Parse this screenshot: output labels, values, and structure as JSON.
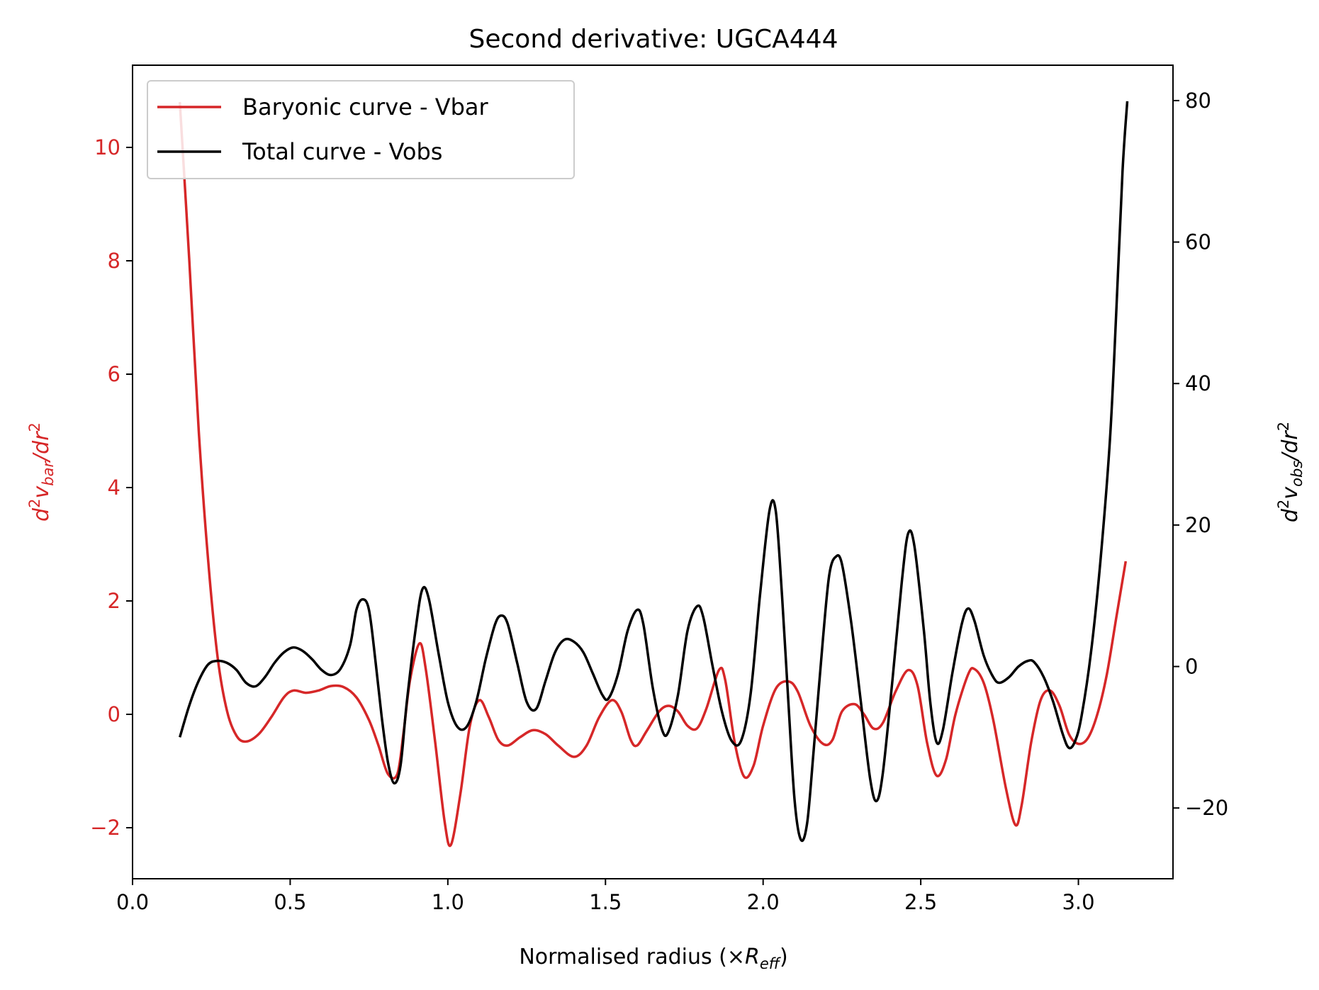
{
  "chart_data": {
    "type": "line",
    "title": "Second derivative: UGCA444",
    "xlabel": {
      "main": "Normalised radius (×",
      "var": "R",
      "sub": "eff",
      "tail": ")"
    },
    "ylabel_left": {
      "pre": "d",
      "sup1": "2",
      "v": "v",
      "sub": "bar",
      "mid": "/dr",
      "sup2": "2"
    },
    "ylabel_right": {
      "pre": "d",
      "sup1": "2",
      "v": "v",
      "sub": "obs",
      "mid": "/dr",
      "sup2": "2"
    },
    "xlim": [
      0.0,
      3.3
    ],
    "ylim_left": [
      -2.9,
      11.45
    ],
    "ylim_right": [
      -30,
      85
    ],
    "xticks": [
      0.0,
      0.5,
      1.0,
      1.5,
      2.0,
      2.5,
      3.0
    ],
    "xtick_labels": [
      "0.0",
      "0.5",
      "1.0",
      "1.5",
      "2.0",
      "2.5",
      "3.0"
    ],
    "yticks_left": [
      -2,
      0,
      2,
      4,
      6,
      8,
      10
    ],
    "ytick_labels_left": [
      "−2",
      "0",
      "2",
      "4",
      "6",
      "8",
      "10"
    ],
    "yticks_right": [
      -20,
      0,
      20,
      40,
      60,
      80
    ],
    "ytick_labels_right": [
      "−20",
      "0",
      "20",
      "40",
      "60",
      "80"
    ],
    "grid": false,
    "legend_position": "upper-left",
    "colors": {
      "vbar": "#d62728",
      "vobs": "#000000",
      "axis": "#000000"
    },
    "series": [
      {
        "name": "Baryonic curve - Vbar",
        "axis": "left",
        "color": "#d62728",
        "points": [
          [
            0.15,
            10.8
          ],
          [
            0.18,
            8.0
          ],
          [
            0.21,
            5.0
          ],
          [
            0.24,
            2.7
          ],
          [
            0.27,
            1.0
          ],
          [
            0.3,
            0.05
          ],
          [
            0.33,
            -0.38
          ],
          [
            0.36,
            -0.48
          ],
          [
            0.4,
            -0.35
          ],
          [
            0.44,
            -0.05
          ],
          [
            0.48,
            0.3
          ],
          [
            0.51,
            0.42
          ],
          [
            0.55,
            0.38
          ],
          [
            0.59,
            0.42
          ],
          [
            0.63,
            0.5
          ],
          [
            0.67,
            0.48
          ],
          [
            0.71,
            0.3
          ],
          [
            0.75,
            -0.1
          ],
          [
            0.78,
            -0.55
          ],
          [
            0.81,
            -1.05
          ],
          [
            0.84,
            -1.05
          ],
          [
            0.86,
            -0.3
          ],
          [
            0.88,
            0.6
          ],
          [
            0.91,
            1.25
          ],
          [
            0.93,
            0.8
          ],
          [
            0.96,
            -0.5
          ],
          [
            0.99,
            -1.9
          ],
          [
            1.01,
            -2.3
          ],
          [
            1.04,
            -1.4
          ],
          [
            1.07,
            -0.2
          ],
          [
            1.1,
            0.25
          ],
          [
            1.13,
            -0.05
          ],
          [
            1.16,
            -0.45
          ],
          [
            1.19,
            -0.55
          ],
          [
            1.23,
            -0.4
          ],
          [
            1.27,
            -0.28
          ],
          [
            1.31,
            -0.35
          ],
          [
            1.35,
            -0.55
          ],
          [
            1.4,
            -0.75
          ],
          [
            1.44,
            -0.55
          ],
          [
            1.48,
            -0.05
          ],
          [
            1.52,
            0.25
          ],
          [
            1.55,
            0.05
          ],
          [
            1.58,
            -0.45
          ],
          [
            1.6,
            -0.55
          ],
          [
            1.63,
            -0.3
          ],
          [
            1.67,
            0.05
          ],
          [
            1.7,
            0.15
          ],
          [
            1.73,
            0.05
          ],
          [
            1.76,
            -0.2
          ],
          [
            1.79,
            -0.25
          ],
          [
            1.82,
            0.1
          ],
          [
            1.86,
            0.78
          ],
          [
            1.88,
            0.6
          ],
          [
            1.91,
            -0.5
          ],
          [
            1.94,
            -1.1
          ],
          [
            1.97,
            -0.9
          ],
          [
            2.0,
            -0.2
          ],
          [
            2.04,
            0.45
          ],
          [
            2.08,
            0.58
          ],
          [
            2.11,
            0.4
          ],
          [
            2.15,
            -0.2
          ],
          [
            2.19,
            -0.52
          ],
          [
            2.22,
            -0.45
          ],
          [
            2.25,
            0.05
          ],
          [
            2.29,
            0.18
          ],
          [
            2.32,
            0.0
          ],
          [
            2.35,
            -0.25
          ],
          [
            2.38,
            -0.15
          ],
          [
            2.42,
            0.4
          ],
          [
            2.46,
            0.78
          ],
          [
            2.49,
            0.5
          ],
          [
            2.52,
            -0.5
          ],
          [
            2.55,
            -1.08
          ],
          [
            2.58,
            -0.8
          ],
          [
            2.61,
            0.0
          ],
          [
            2.65,
            0.7
          ],
          [
            2.67,
            0.8
          ],
          [
            2.7,
            0.55
          ],
          [
            2.73,
            -0.1
          ],
          [
            2.77,
            -1.3
          ],
          [
            2.8,
            -1.95
          ],
          [
            2.82,
            -1.6
          ],
          [
            2.85,
            -0.5
          ],
          [
            2.88,
            0.25
          ],
          [
            2.91,
            0.42
          ],
          [
            2.94,
            0.15
          ],
          [
            2.97,
            -0.35
          ],
          [
            3.0,
            -0.52
          ],
          [
            3.03,
            -0.42
          ],
          [
            3.06,
            0.0
          ],
          [
            3.09,
            0.7
          ],
          [
            3.12,
            1.7
          ],
          [
            3.15,
            2.7
          ]
        ]
      },
      {
        "name": "Total curve - Vobs",
        "axis": "right",
        "color": "#000000",
        "points": [
          [
            0.15,
            -10.0
          ],
          [
            0.18,
            -5.5
          ],
          [
            0.21,
            -2.0
          ],
          [
            0.24,
            0.3
          ],
          [
            0.27,
            0.8
          ],
          [
            0.3,
            0.5
          ],
          [
            0.33,
            -0.5
          ],
          [
            0.36,
            -2.3
          ],
          [
            0.39,
            -2.8
          ],
          [
            0.42,
            -1.5
          ],
          [
            0.45,
            0.5
          ],
          [
            0.48,
            2.0
          ],
          [
            0.51,
            2.7
          ],
          [
            0.54,
            2.2
          ],
          [
            0.57,
            1.0
          ],
          [
            0.6,
            -0.5
          ],
          [
            0.63,
            -1.2
          ],
          [
            0.66,
            -0.3
          ],
          [
            0.69,
            3.0
          ],
          [
            0.71,
            8.0
          ],
          [
            0.73,
            9.5
          ],
          [
            0.75,
            8.0
          ],
          [
            0.77,
            1.0
          ],
          [
            0.79,
            -7.0
          ],
          [
            0.81,
            -13.5
          ],
          [
            0.83,
            -16.5
          ],
          [
            0.85,
            -14.0
          ],
          [
            0.87,
            -5.0
          ],
          [
            0.9,
            6.0
          ],
          [
            0.92,
            11.0
          ],
          [
            0.94,
            9.5
          ],
          [
            0.97,
            2.0
          ],
          [
            1.0,
            -5.0
          ],
          [
            1.03,
            -8.5
          ],
          [
            1.06,
            -8.5
          ],
          [
            1.09,
            -5.0
          ],
          [
            1.12,
            1.0
          ],
          [
            1.15,
            6.0
          ],
          [
            1.17,
            7.2
          ],
          [
            1.19,
            6.0
          ],
          [
            1.22,
            0.5
          ],
          [
            1.25,
            -5.0
          ],
          [
            1.28,
            -6.0
          ],
          [
            1.31,
            -2.0
          ],
          [
            1.34,
            2.0
          ],
          [
            1.37,
            3.8
          ],
          [
            1.4,
            3.5
          ],
          [
            1.43,
            2.0
          ],
          [
            1.46,
            -1.0
          ],
          [
            1.49,
            -4.0
          ],
          [
            1.51,
            -4.5
          ],
          [
            1.54,
            -1.0
          ],
          [
            1.57,
            5.0
          ],
          [
            1.6,
            8.0
          ],
          [
            1.62,
            6.0
          ],
          [
            1.65,
            -3.0
          ],
          [
            1.68,
            -9.0
          ],
          [
            1.7,
            -9.2
          ],
          [
            1.73,
            -4.0
          ],
          [
            1.76,
            5.0
          ],
          [
            1.79,
            8.5
          ],
          [
            1.81,
            7.0
          ],
          [
            1.84,
            0.0
          ],
          [
            1.87,
            -6.5
          ],
          [
            1.9,
            -10.5
          ],
          [
            1.93,
            -10.5
          ],
          [
            1.96,
            -4.0
          ],
          [
            1.99,
            10.0
          ],
          [
            2.02,
            22.0
          ],
          [
            2.04,
            22.0
          ],
          [
            2.06,
            10.0
          ],
          [
            2.08,
            -5.0
          ],
          [
            2.1,
            -19.0
          ],
          [
            2.12,
            -24.5
          ],
          [
            2.14,
            -22.0
          ],
          [
            2.16,
            -12.0
          ],
          [
            2.19,
            4.0
          ],
          [
            2.21,
            13.0
          ],
          [
            2.23,
            15.5
          ],
          [
            2.25,
            14.5
          ],
          [
            2.28,
            6.0
          ],
          [
            2.31,
            -5.0
          ],
          [
            2.34,
            -16.0
          ],
          [
            2.36,
            -19.0
          ],
          [
            2.38,
            -15.0
          ],
          [
            2.41,
            -2.0
          ],
          [
            2.44,
            12.0
          ],
          [
            2.46,
            18.8
          ],
          [
            2.48,
            17.0
          ],
          [
            2.51,
            5.0
          ],
          [
            2.53,
            -5.0
          ],
          [
            2.55,
            -10.7
          ],
          [
            2.57,
            -9.0
          ],
          [
            2.6,
            -1.0
          ],
          [
            2.63,
            6.0
          ],
          [
            2.65,
            8.2
          ],
          [
            2.67,
            6.5
          ],
          [
            2.7,
            1.5
          ],
          [
            2.73,
            -1.5
          ],
          [
            2.75,
            -2.3
          ],
          [
            2.78,
            -1.5
          ],
          [
            2.81,
            0.0
          ],
          [
            2.84,
            0.8
          ],
          [
            2.86,
            0.6
          ],
          [
            2.89,
            -1.5
          ],
          [
            2.92,
            -5.0
          ],
          [
            2.95,
            -9.5
          ],
          [
            2.97,
            -11.5
          ],
          [
            2.99,
            -10.5
          ],
          [
            3.01,
            -7.0
          ],
          [
            3.04,
            2.0
          ],
          [
            3.07,
            15.0
          ],
          [
            3.1,
            32.0
          ],
          [
            3.12,
            50.0
          ],
          [
            3.14,
            70.0
          ],
          [
            3.155,
            79.9
          ]
        ]
      }
    ]
  }
}
